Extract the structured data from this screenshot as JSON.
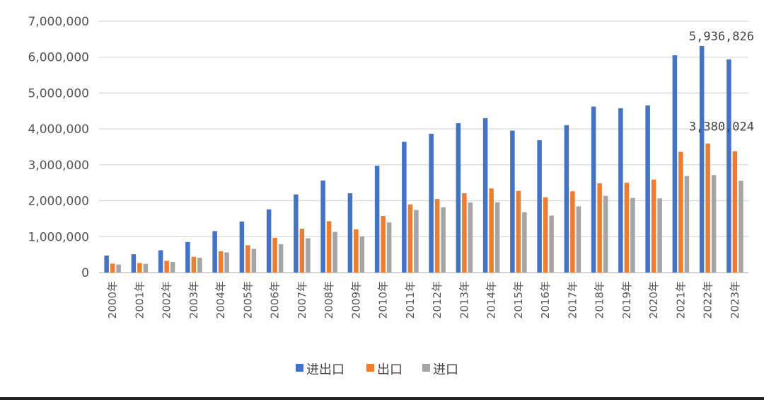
{
  "chart_data": {
    "type": "bar",
    "title": "",
    "xlabel": "",
    "ylabel": "",
    "ylim": [
      0,
      7000000
    ],
    "yticks": [
      "0",
      "1,000,000",
      "2,000,000",
      "3,000,000",
      "4,000,000",
      "5,000,000",
      "6,000,000",
      "7,000,000"
    ],
    "grid": true,
    "legend_position": "bottom",
    "categories": [
      "2000年",
      "2001年",
      "2002年",
      "2003年",
      "2004年",
      "2005年",
      "2006年",
      "2007年",
      "2008年",
      "2009年",
      "2010年",
      "2011年",
      "2012年",
      "2013年",
      "2014年",
      "2015年",
      "2016年",
      "2017年",
      "2018年",
      "2019年",
      "2020年",
      "2021年",
      "2022年",
      "2023年"
    ],
    "series": [
      {
        "name": "进出口",
        "color": "#4472C4",
        "values": [
          474300,
          509700,
          620800,
          851000,
          1154600,
          1421900,
          1760400,
          2176200,
          2563300,
          2207500,
          2974000,
          3641900,
          3867100,
          4159000,
          4301500,
          3953000,
          3685600,
          4107100,
          4622400,
          4577900,
          4655900,
          6051500,
          6309600,
          5936826
        ]
      },
      {
        "name": "出口",
        "color": "#ED7D31",
        "values": [
          249200,
          266100,
          325600,
          438200,
          593300,
          762000,
          969100,
          1220500,
          1430700,
          1201600,
          1577800,
          1898400,
          2048700,
          2209000,
          2342300,
          2273500,
          2097600,
          2263300,
          2486700,
          2499500,
          2590000,
          3362000,
          3593600,
          3380024
        ]
      },
      {
        "name": "进口",
        "color": "#A5A5A5",
        "values": [
          225100,
          243600,
          295200,
          412800,
          561200,
          660000,
          791500,
          955800,
          1132600,
          1005900,
          1396200,
          1743500,
          1818400,
          1950000,
          1959200,
          1679600,
          1587900,
          1843800,
          2135700,
          2078400,
          2065900,
          2689500,
          2716000,
          2556800
        ]
      }
    ],
    "data_labels": [
      {
        "category": "2023年",
        "series": "进出口",
        "text": "5,936,826"
      },
      {
        "category": "2023年",
        "series": "出口",
        "text": "3,380,024"
      }
    ]
  }
}
